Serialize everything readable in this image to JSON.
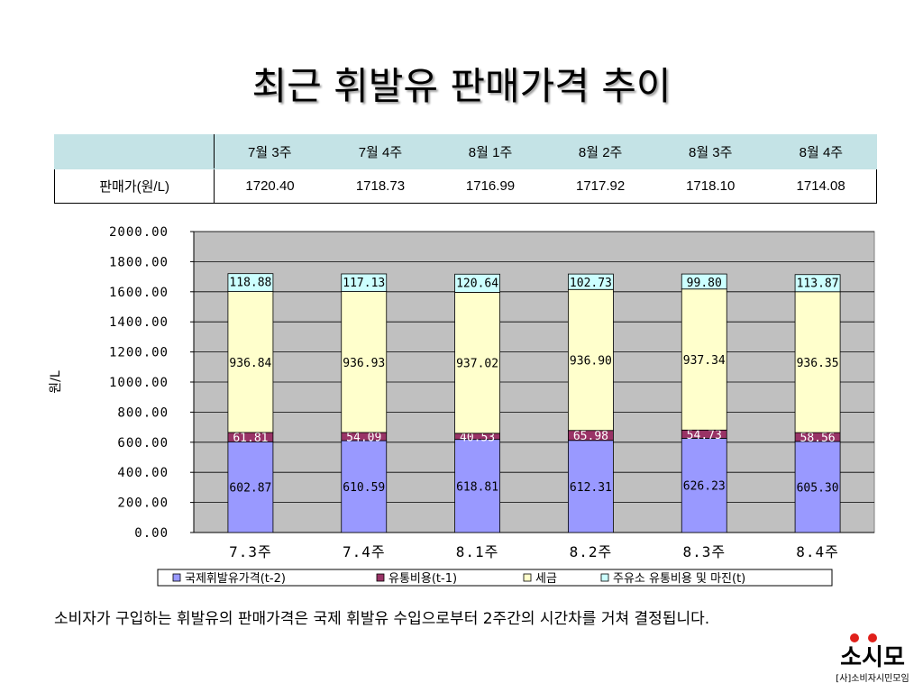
{
  "slide": {
    "title": "최근 휘발유 판매가격 추이",
    "caption": "소비자가 구입하는 휘발유의 판매가격은 국제 휘발유 수입으로부터 2주간의 시간차를 거쳐 결정됩니다."
  },
  "table": {
    "corner": "",
    "row_label": "판매가(원/L)",
    "columns": [
      "7월 3주",
      "7월 4주",
      "8월 1주",
      "8월 2주",
      "8월 3주",
      "8월 4주"
    ],
    "values": [
      "1720.40",
      "1718.73",
      "1716.99",
      "1717.92",
      "1718.10",
      "1714.08"
    ]
  },
  "chart_data": {
    "type": "bar",
    "stacked": true,
    "title": "",
    "xlabel": "",
    "ylabel": "원/L",
    "ylim": [
      0,
      2000
    ],
    "yticks": [
      "0.00",
      "200.00",
      "400.00",
      "600.00",
      "800.00",
      "1000.00",
      "1200.00",
      "1400.00",
      "1600.00",
      "1800.00",
      "2000.00"
    ],
    "grid": true,
    "legend_position": "bottom",
    "categories": [
      "7.3주",
      "7.4주",
      "8.1주",
      "8.2주",
      "8.3주",
      "8.4주"
    ],
    "series": [
      {
        "name": "국제휘발유가격(t-2)",
        "color": "#9999ff",
        "values": [
          602.87,
          610.59,
          618.81,
          612.31,
          626.23,
          605.3
        ],
        "labels": [
          "602.87",
          "610.59",
          "618.81",
          "612.31",
          "626.23",
          "605.30"
        ]
      },
      {
        "name": "유통비용(t-1)",
        "color": "#993366",
        "values": [
          61.81,
          54.09,
          40.53,
          65.98,
          54.73,
          58.56
        ],
        "labels": [
          "61.81",
          "54.09",
          "40.53",
          "65.98",
          "54.73",
          "58.56"
        ]
      },
      {
        "name": "세금",
        "color": "#ffffcc",
        "values": [
          936.84,
          936.93,
          937.02,
          936.9,
          937.34,
          936.35
        ],
        "labels": [
          "936.84",
          "936.93",
          "937.02",
          "936.90",
          "937.34",
          "936.35"
        ]
      },
      {
        "name": "주유소 유통비용 및 마진(t)",
        "color": "#ccffff",
        "values": [
          118.88,
          117.13,
          120.64,
          102.73,
          99.8,
          113.87
        ],
        "labels": [
          "118.88",
          "117.13",
          "120.64",
          "102.73",
          "99.80",
          "113.87"
        ]
      }
    ],
    "plot_background": "#c0c0c0"
  },
  "logo": {
    "main": "소시모",
    "sub": "[사]소비자시민모임"
  }
}
